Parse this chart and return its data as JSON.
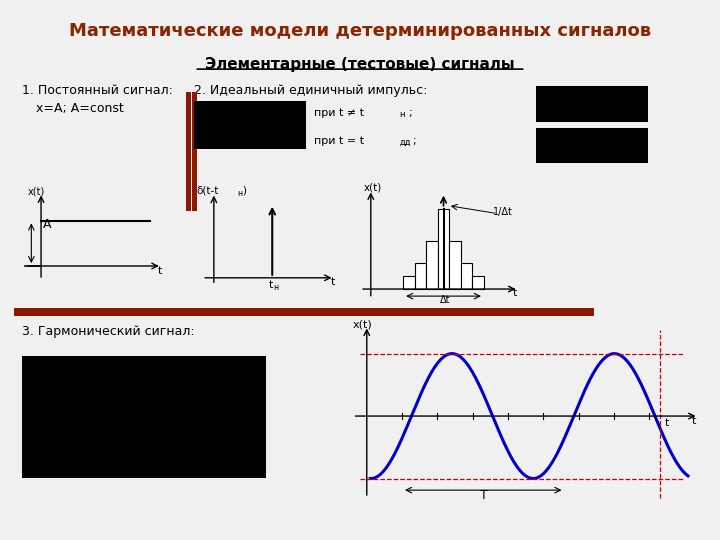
{
  "title": "Математические модели детерминированных сигналов",
  "subtitle": "Элементарные (тестовые) сигналы",
  "title_color": "#8B2500",
  "subtitle_color": "#000000",
  "bg_color": "#F0F0F0",
  "text1_line1": "1. Постоянный сигнал:",
  "text1_line2": "x=A; A=const",
  "text2": "2. Идеальный единичный импульс:",
  "text3": "3. Гармонический сигнал:",
  "red_bar_color": "#8B1A00",
  "divider_color": "#8B1A00",
  "sine_color": "#0000CD",
  "dashed_color": "#CC0000",
  "black_color": "#000000",
  "white_color": "#FFFFFF"
}
